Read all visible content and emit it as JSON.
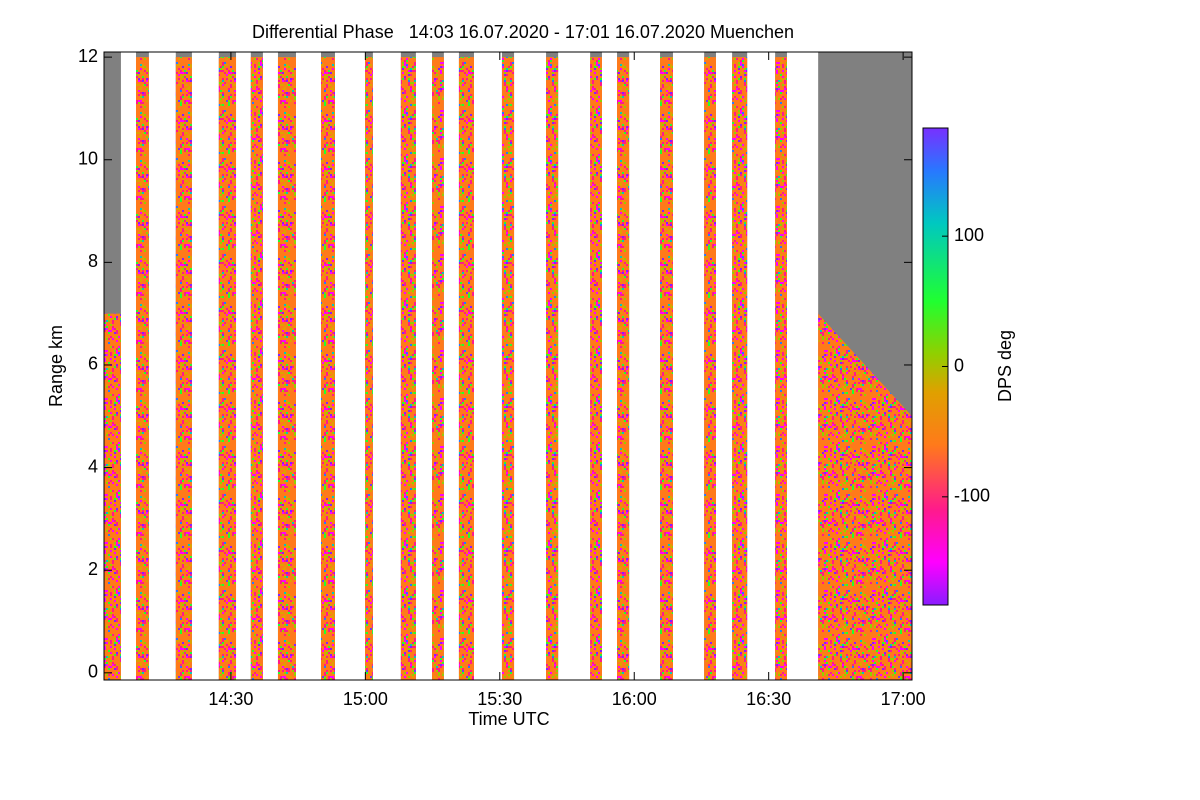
{
  "chart_data": {
    "type": "time-height",
    "title": "Differential Phase   14:03 16.07.2020 - 17:01 16.07.2020 Muenchen",
    "x_label": "Time UTC",
    "y_label": "Range km",
    "colorbar_label": "DPS deg",
    "xlim": [
      14.028,
      17.033
    ],
    "xticks": [
      {
        "value": 14.5,
        "label": "14:30"
      },
      {
        "value": 15,
        "label": "15:00"
      },
      {
        "value": 15.5,
        "label": "15:30"
      },
      {
        "value": 16,
        "label": "16:00"
      },
      {
        "value": 16.5,
        "label": "16:30"
      },
      {
        "value": 17,
        "label": "17:00"
      }
    ],
    "ylim": [
      -0.14,
      12.1
    ],
    "yticks": [
      0,
      2,
      4,
      6,
      8,
      10,
      12
    ],
    "zlim": [
      -183,
      183
    ],
    "zticks": [
      -100,
      0,
      100
    ],
    "no_echo_color": "#808080",
    "data_bottom": 0.1,
    "colormap": [
      {
        "value": -183,
        "color": "#8a1cff"
      },
      {
        "value": -150,
        "color": "#ff00ff"
      },
      {
        "value": -110,
        "color": "#ff1a8c"
      },
      {
        "value": -60,
        "color": "#ff7a1a"
      },
      {
        "value": -20,
        "color": "#e0a000"
      },
      {
        "value": 10,
        "color": "#90d000"
      },
      {
        "value": 50,
        "color": "#20ff30"
      },
      {
        "value": 110,
        "color": "#00c8c0"
      },
      {
        "value": 150,
        "color": "#2878ff"
      },
      {
        "value": 183,
        "color": "#7830ff"
      }
    ],
    "scans": [
      {
        "start": 14.028,
        "end": 14.091,
        "top": [
          7,
          7
        ]
      },
      {
        "start": 14.147,
        "end": 14.195,
        "top": [
          12,
          12
        ]
      },
      {
        "start": 14.295,
        "end": 14.355,
        "top": [
          12,
          12
        ]
      },
      {
        "start": 14.455,
        "end": 14.519,
        "top": [
          12,
          12
        ]
      },
      {
        "start": 14.574,
        "end": 14.619,
        "top": [
          12,
          12
        ]
      },
      {
        "start": 14.675,
        "end": 14.742,
        "top": [
          12,
          12
        ]
      },
      {
        "start": 14.835,
        "end": 14.887,
        "top": [
          12,
          12
        ]
      },
      {
        "start": 14.999,
        "end": 15.028,
        "top": [
          12,
          12
        ]
      },
      {
        "start": 15.132,
        "end": 15.188,
        "top": [
          12,
          12
        ]
      },
      {
        "start": 15.248,
        "end": 15.292,
        "top": [
          12,
          12
        ]
      },
      {
        "start": 15.348,
        "end": 15.404,
        "top": [
          12,
          12
        ]
      },
      {
        "start": 15.508,
        "end": 15.553,
        "top": [
          12,
          12
        ]
      },
      {
        "start": 15.672,
        "end": 15.717,
        "top": [
          12,
          12
        ]
      },
      {
        "start": 15.836,
        "end": 15.88,
        "top": [
          12,
          12
        ]
      },
      {
        "start": 15.936,
        "end": 15.981,
        "top": [
          12,
          12
        ]
      },
      {
        "start": 16.096,
        "end": 16.144,
        "top": [
          12,
          12
        ]
      },
      {
        "start": 16.26,
        "end": 16.304,
        "top": [
          12,
          12
        ]
      },
      {
        "start": 16.364,
        "end": 16.42,
        "top": [
          12,
          12
        ]
      },
      {
        "start": 16.524,
        "end": 16.568,
        "top": [
          12,
          12
        ]
      },
      {
        "start": 16.684,
        "end": 17.033,
        "top": [
          7,
          5
        ]
      }
    ]
  }
}
